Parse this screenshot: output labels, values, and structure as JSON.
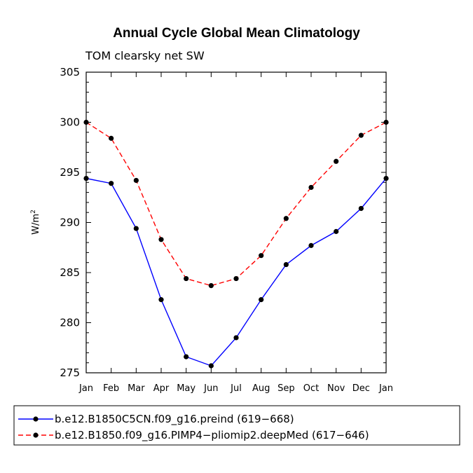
{
  "chart_data": {
    "type": "line",
    "title": "Annual Cycle Global Mean Climatology",
    "subtitle": "TOM clearsky net SW",
    "ylabel": "W/m",
    "ylabel_sup": "2",
    "xlabel": "",
    "ylim": [
      275,
      305
    ],
    "yticks": [
      275,
      280,
      285,
      290,
      295,
      300,
      305
    ],
    "categories": [
      "Jan",
      "Feb",
      "Mar",
      "Apr",
      "May",
      "Jun",
      "Jul",
      "Aug",
      "Sep",
      "Oct",
      "Nov",
      "Dec",
      "Jan"
    ],
    "legend_position": "bottom",
    "series": [
      {
        "name": "b.e12.B1850C5CN.f09_g16.preind (619−668)",
        "color": "#0000ff",
        "dash": "solid",
        "values": [
          294.4,
          293.9,
          289.4,
          282.3,
          276.6,
          275.7,
          278.5,
          282.3,
          285.8,
          287.7,
          289.1,
          291.4,
          294.4
        ]
      },
      {
        "name": "b.e12.B1850.f09_g16.PIMP4−pliomip2.deepMed (617−646)",
        "color": "#ff0000",
        "dash": "dashed",
        "values": [
          300.0,
          298.4,
          294.2,
          288.3,
          284.4,
          283.7,
          284.4,
          286.7,
          290.4,
          293.5,
          296.1,
          298.7,
          300.0
        ]
      }
    ]
  }
}
